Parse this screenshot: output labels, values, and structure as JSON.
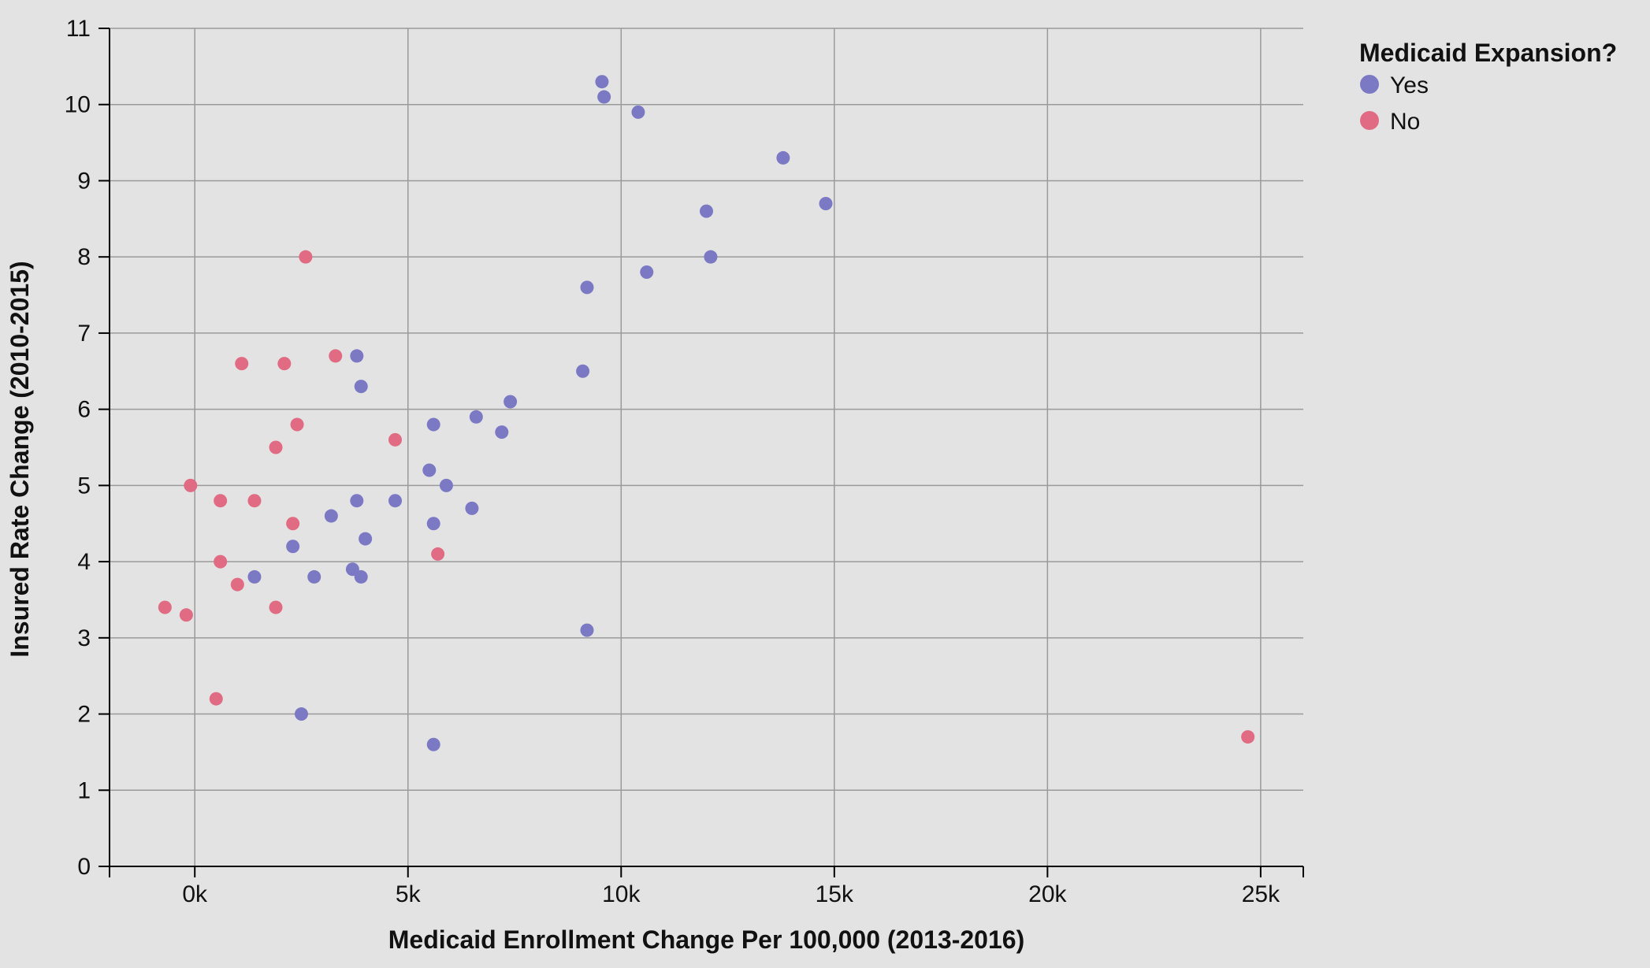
{
  "chart_data": {
    "type": "scatter",
    "xlabel": "Medicaid Enrollment Change Per 100,000 (2013-2016)",
    "ylabel": "Insured Rate Change (2010-2015)",
    "xlim": [
      -2000,
      26000
    ],
    "ylim": [
      0,
      11
    ],
    "x_ticks": [
      {
        "value": 0,
        "label": "0k"
      },
      {
        "value": 5000,
        "label": "5k"
      },
      {
        "value": 10000,
        "label": "10k"
      },
      {
        "value": 15000,
        "label": "15k"
      },
      {
        "value": 20000,
        "label": "20k"
      },
      {
        "value": 25000,
        "label": "25k"
      }
    ],
    "y_ticks": [
      {
        "value": 0,
        "label": "0"
      },
      {
        "value": 1,
        "label": "1"
      },
      {
        "value": 2,
        "label": "2"
      },
      {
        "value": 3,
        "label": "3"
      },
      {
        "value": 4,
        "label": "4"
      },
      {
        "value": 5,
        "label": "5"
      },
      {
        "value": 6,
        "label": "6"
      },
      {
        "value": 7,
        "label": "7"
      },
      {
        "value": 8,
        "label": "8"
      },
      {
        "value": 9,
        "label": "9"
      },
      {
        "value": 10,
        "label": "10"
      },
      {
        "value": 11,
        "label": "11"
      }
    ],
    "grid": true,
    "legend": {
      "title": "Medicaid Expansion?",
      "position": "top-right"
    },
    "series": [
      {
        "name": "Yes",
        "color": "#7b78c4",
        "points": [
          {
            "x": 9550,
            "y": 10.3
          },
          {
            "x": 9600,
            "y": 10.1
          },
          {
            "x": 10400,
            "y": 9.9
          },
          {
            "x": 13800,
            "y": 9.3
          },
          {
            "x": 14800,
            "y": 8.7
          },
          {
            "x": 12000,
            "y": 8.6
          },
          {
            "x": 12100,
            "y": 8.0
          },
          {
            "x": 10600,
            "y": 7.8
          },
          {
            "x": 9200,
            "y": 7.6
          },
          {
            "x": 3800,
            "y": 6.7
          },
          {
            "x": 9100,
            "y": 6.5
          },
          {
            "x": 3900,
            "y": 6.3
          },
          {
            "x": 7400,
            "y": 6.1
          },
          {
            "x": 6600,
            "y": 5.9
          },
          {
            "x": 5600,
            "y": 5.8
          },
          {
            "x": 7200,
            "y": 5.7
          },
          {
            "x": 5500,
            "y": 5.2
          },
          {
            "x": 5900,
            "y": 5.0
          },
          {
            "x": 3800,
            "y": 4.8
          },
          {
            "x": 4700,
            "y": 4.8
          },
          {
            "x": 6500,
            "y": 4.7
          },
          {
            "x": 3200,
            "y": 4.6
          },
          {
            "x": 5600,
            "y": 4.5
          },
          {
            "x": 4000,
            "y": 4.3
          },
          {
            "x": 2300,
            "y": 4.2
          },
          {
            "x": 3700,
            "y": 3.9
          },
          {
            "x": 1400,
            "y": 3.8
          },
          {
            "x": 2800,
            "y": 3.8
          },
          {
            "x": 3900,
            "y": 3.8
          },
          {
            "x": 9200,
            "y": 3.1
          },
          {
            "x": 2500,
            "y": 2.0
          },
          {
            "x": 5600,
            "y": 1.6
          }
        ]
      },
      {
        "name": "No",
        "color": "#e06b83",
        "points": [
          {
            "x": 2600,
            "y": 8.0
          },
          {
            "x": 3300,
            "y": 6.7
          },
          {
            "x": 1100,
            "y": 6.6
          },
          {
            "x": 2100,
            "y": 6.6
          },
          {
            "x": 2400,
            "y": 5.8
          },
          {
            "x": 4700,
            "y": 5.6
          },
          {
            "x": 1900,
            "y": 5.5
          },
          {
            "x": -100,
            "y": 5.0
          },
          {
            "x": 600,
            "y": 4.8
          },
          {
            "x": 1400,
            "y": 4.8
          },
          {
            "x": 2300,
            "y": 4.5
          },
          {
            "x": 5700,
            "y": 4.1
          },
          {
            "x": 600,
            "y": 4.0
          },
          {
            "x": 1000,
            "y": 3.7
          },
          {
            "x": -700,
            "y": 3.4
          },
          {
            "x": 1900,
            "y": 3.4
          },
          {
            "x": -200,
            "y": 3.3
          },
          {
            "x": 500,
            "y": 2.2
          },
          {
            "x": 24700,
            "y": 1.7
          }
        ]
      }
    ]
  }
}
